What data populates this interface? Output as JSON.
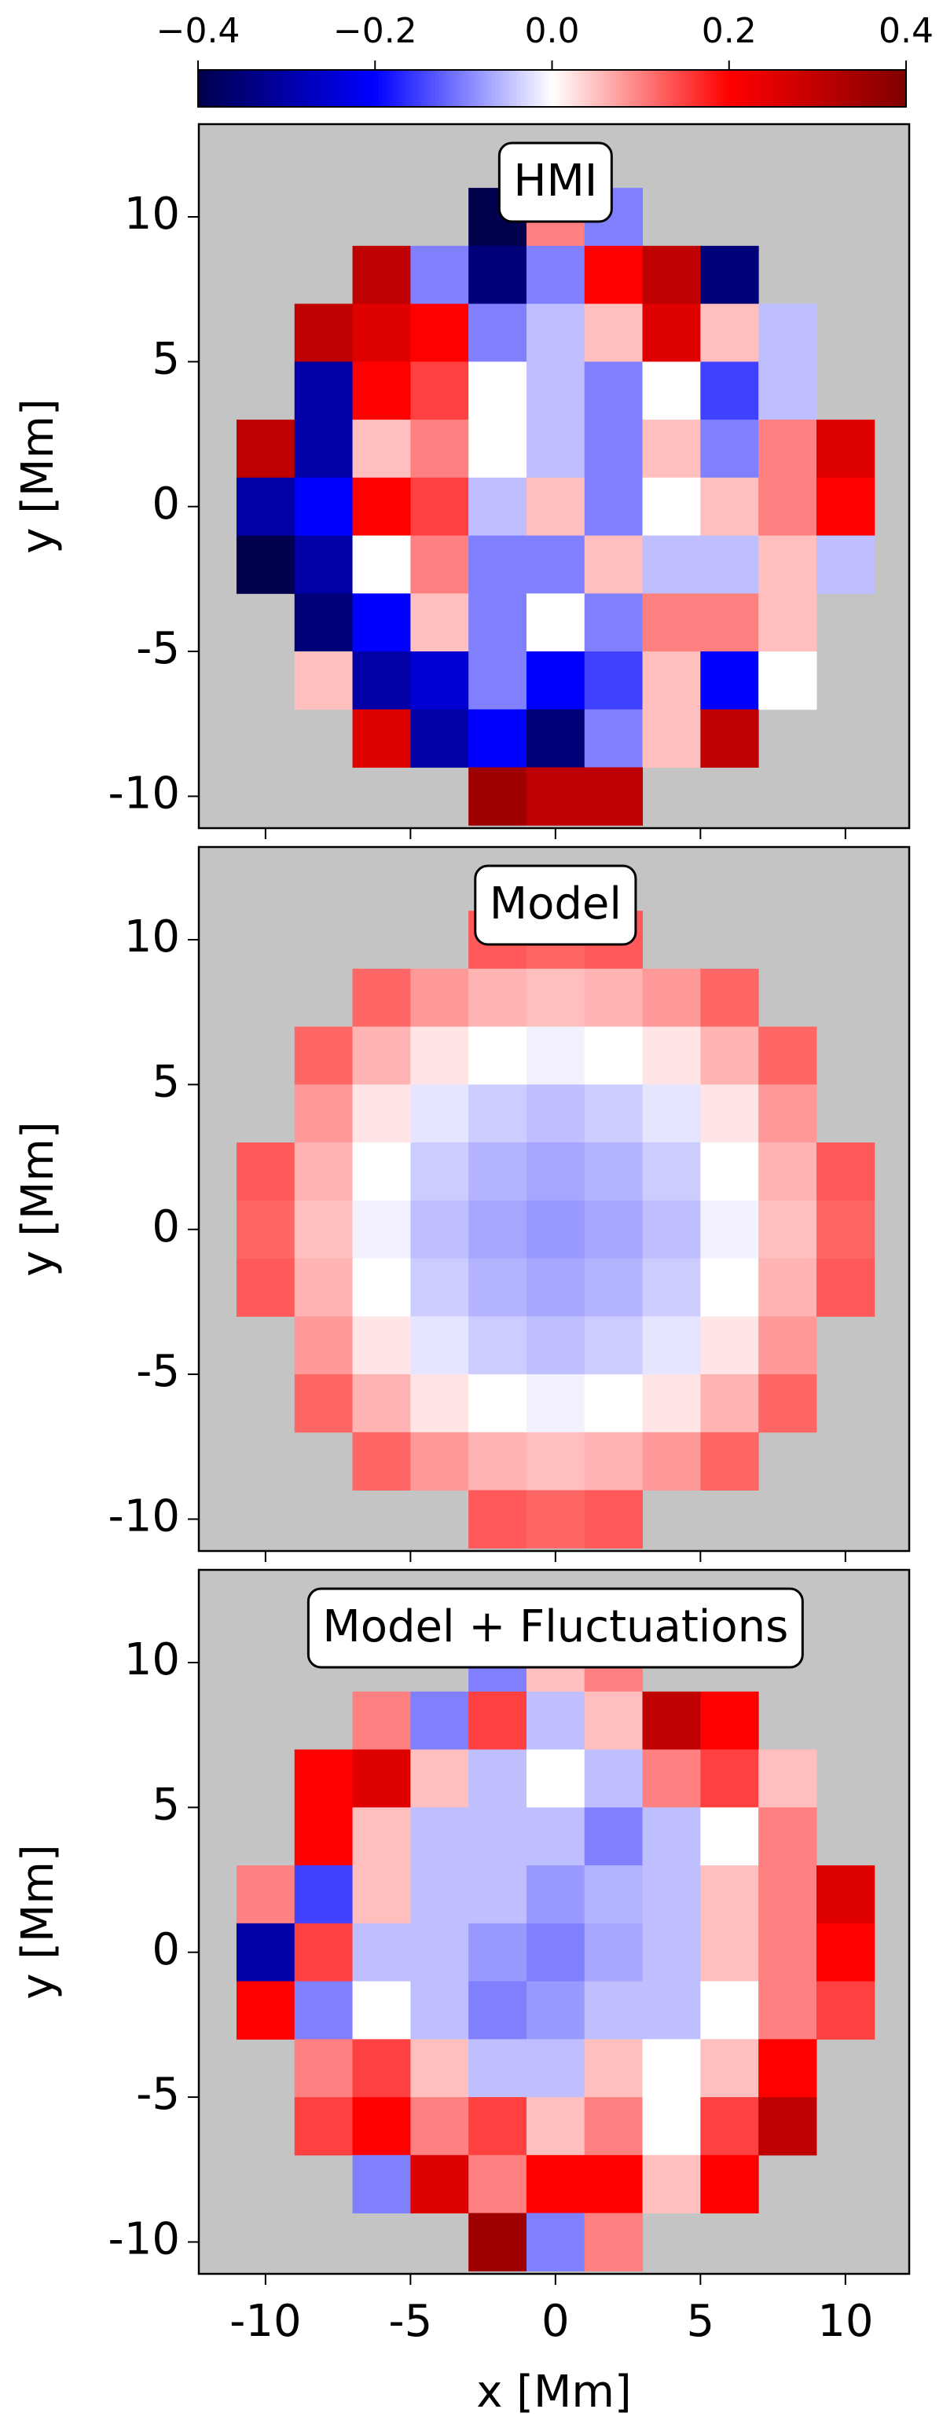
{
  "chart_data": [
    {
      "type": "colorbar",
      "colormap": "seismic",
      "xlim": [
        -0.4,
        0.4
      ],
      "xticks": [
        {
          "value": -0.4,
          "label": "−0.4"
        },
        {
          "value": -0.2,
          "label": "−0.2"
        },
        {
          "value": 0,
          "label": "0.0"
        },
        0.2,
        0.4
      ]
    },
    {
      "type": "heatmap",
      "title": "HMI",
      "ylabel": "y [Mm]",
      "colormap": "seismic",
      "background": "#c4c4c4",
      "xlim": [
        -12.3,
        12.2
      ],
      "ylim": [
        -11.1,
        13.2
      ],
      "xticks": [
        -10,
        -5,
        0,
        5,
        10
      ],
      "yticks": [
        -10,
        -5,
        0,
        5,
        10
      ],
      "x": [
        -10,
        -8,
        -6,
        -4,
        -2,
        0,
        2,
        4,
        6,
        8,
        10
      ],
      "y": [
        10,
        8,
        6,
        4,
        2,
        0,
        -2,
        -4,
        -6,
        -8,
        -10
      ],
      "z": [
        [
          null,
          null,
          null,
          null,
          -0.4,
          0.1,
          -0.1,
          null,
          null,
          null,
          null
        ],
        [
          null,
          null,
          0.3,
          -0.1,
          -0.35,
          -0.1,
          0.2,
          0.3,
          -0.35,
          null,
          null
        ],
        [
          null,
          0.3,
          0.25,
          0.2,
          -0.1,
          -0.05,
          0.05,
          0.25,
          0.05,
          -0.05,
          null
        ],
        [
          null,
          -0.3,
          0.2,
          0.15,
          0,
          -0.05,
          -0.1,
          0,
          -0.15,
          -0.05,
          null
        ],
        [
          0.3,
          -0.3,
          0.05,
          0.1,
          0,
          -0.05,
          -0.1,
          0.05,
          -0.1,
          0.1,
          0.25
        ],
        [
          -0.3,
          -0.2,
          0.2,
          0.15,
          -0.05,
          0.05,
          -0.1,
          0,
          0.05,
          0.1,
          0.2
        ],
        [
          -0.4,
          -0.3,
          0,
          0.1,
          -0.1,
          -0.1,
          0.05,
          -0.05,
          -0.05,
          0.05,
          -0.05
        ],
        [
          null,
          -0.35,
          -0.2,
          0.05,
          -0.1,
          0,
          -0.1,
          0.1,
          0.1,
          0.05,
          null
        ],
        [
          null,
          0.05,
          -0.3,
          -0.25,
          -0.1,
          -0.2,
          -0.15,
          0.05,
          -0.2,
          0,
          null
        ],
        [
          null,
          null,
          0.25,
          -0.3,
          -0.2,
          -0.35,
          -0.1,
          0.05,
          0.3,
          null,
          null
        ],
        [
          null,
          null,
          null,
          null,
          0.35,
          0.3,
          0.3,
          null,
          null,
          null,
          null
        ]
      ]
    },
    {
      "type": "heatmap",
      "title": "Model",
      "ylabel": "y [Mm]",
      "colormap": "seismic",
      "background": "#c4c4c4",
      "xlim": [
        -12.3,
        12.2
      ],
      "ylim": [
        -11.1,
        13.2
      ],
      "xticks": [
        -10,
        -5,
        0,
        5,
        10
      ],
      "yticks": [
        -10,
        -5,
        0,
        5,
        10
      ],
      "x": [
        -10,
        -8,
        -6,
        -4,
        -2,
        0,
        2,
        4,
        6,
        8,
        10
      ],
      "y": [
        10,
        8,
        6,
        4,
        2,
        0,
        -2,
        -4,
        -6,
        -8,
        -10
      ],
      "z": [
        [
          null,
          null,
          null,
          null,
          0.13,
          0.12,
          0.13,
          null,
          null,
          null,
          null
        ],
        [
          null,
          null,
          0.12,
          0.08,
          0.06,
          0.05,
          0.06,
          0.08,
          0.12,
          null,
          null
        ],
        [
          null,
          0.12,
          0.06,
          0.02,
          0,
          -0.01,
          0,
          0.02,
          0.06,
          0.12,
          null
        ],
        [
          null,
          0.08,
          0.02,
          -0.02,
          -0.04,
          -0.05,
          -0.04,
          -0.02,
          0.02,
          0.08,
          null
        ],
        [
          0.13,
          0.06,
          0,
          -0.04,
          -0.06,
          -0.07,
          -0.06,
          -0.04,
          0,
          0.06,
          0.13
        ],
        [
          0.12,
          0.05,
          -0.01,
          -0.05,
          -0.07,
          -0.08,
          -0.07,
          -0.05,
          -0.01,
          0.05,
          0.12
        ],
        [
          0.13,
          0.06,
          0,
          -0.04,
          -0.06,
          -0.07,
          -0.06,
          -0.04,
          0,
          0.06,
          0.13
        ],
        [
          null,
          0.08,
          0.02,
          -0.02,
          -0.04,
          -0.05,
          -0.04,
          -0.02,
          0.02,
          0.08,
          null
        ],
        [
          null,
          0.12,
          0.06,
          0.02,
          0,
          -0.01,
          0,
          0.02,
          0.06,
          0.12,
          null
        ],
        [
          null,
          null,
          0.12,
          0.08,
          0.06,
          0.05,
          0.06,
          0.08,
          0.12,
          null,
          null
        ],
        [
          null,
          null,
          null,
          null,
          0.13,
          0.12,
          0.13,
          null,
          null,
          null,
          null
        ]
      ]
    },
    {
      "type": "heatmap",
      "title": "Model + Fluctuations",
      "ylabel": "y [Mm]",
      "xlabel": "x [Mm]",
      "colormap": "seismic",
      "background": "#c4c4c4",
      "xlim": [
        -12.3,
        12.2
      ],
      "ylim": [
        -11.1,
        13.2
      ],
      "xticks": [
        -10,
        -5,
        0,
        5,
        10
      ],
      "yticks": [
        -10,
        -5,
        0,
        5,
        10
      ],
      "x": [
        -10,
        -8,
        -6,
        -4,
        -2,
        0,
        2,
        4,
        6,
        8,
        10
      ],
      "y": [
        10,
        8,
        6,
        4,
        2,
        0,
        -2,
        -4,
        -6,
        -8,
        -10
      ],
      "z": [
        [
          null,
          null,
          null,
          null,
          -0.1,
          0.05,
          0.1,
          null,
          null,
          null,
          null
        ],
        [
          null,
          null,
          0.1,
          -0.1,
          0.15,
          -0.05,
          0.05,
          0.3,
          0.2,
          null,
          null
        ],
        [
          null,
          0.2,
          0.25,
          0.05,
          -0.05,
          0,
          -0.05,
          0.1,
          0.15,
          0.05,
          null
        ],
        [
          null,
          0.2,
          0.05,
          -0.05,
          -0.05,
          -0.05,
          -0.1,
          -0.05,
          0,
          0.1,
          null
        ],
        [
          0.1,
          -0.15,
          0.05,
          -0.05,
          -0.05,
          -0.08,
          -0.06,
          -0.05,
          0.05,
          0.1,
          0.25
        ],
        [
          -0.3,
          0.15,
          -0.05,
          -0.05,
          -0.08,
          -0.1,
          -0.07,
          -0.05,
          0.05,
          0.1,
          0.2
        ],
        [
          0.2,
          -0.1,
          0,
          -0.05,
          -0.1,
          -0.08,
          -0.05,
          -0.05,
          0,
          0.1,
          0.15
        ],
        [
          null,
          0.1,
          0.15,
          0.05,
          -0.05,
          -0.05,
          0.05,
          0,
          0.05,
          0.2,
          null
        ],
        [
          null,
          0.15,
          0.2,
          0.1,
          0.15,
          0.05,
          0.1,
          0,
          0.15,
          0.3,
          null
        ],
        [
          null,
          null,
          -0.1,
          0.25,
          0.1,
          0.2,
          0.2,
          0.05,
          0.2,
          null,
          null
        ],
        [
          null,
          null,
          null,
          null,
          0.35,
          -0.1,
          0.1,
          null,
          null,
          null,
          null
        ]
      ]
    }
  ]
}
